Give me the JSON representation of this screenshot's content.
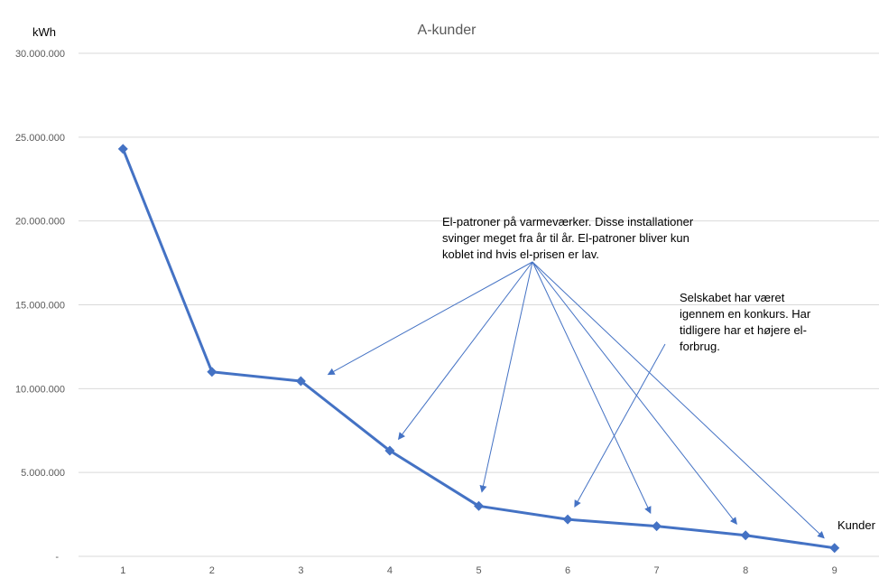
{
  "chart_data": {
    "type": "line",
    "title": "A-kunder",
    "ylabel": "kWh",
    "xlabel": "Kunder",
    "ylim": [
      0,
      30000000
    ],
    "y_ticks": [
      {
        "value": 0,
        "label": "-"
      },
      {
        "value": 5000000,
        "label": "5.000.000"
      },
      {
        "value": 10000000,
        "label": "10.000.000"
      },
      {
        "value": 15000000,
        "label": "15.000.000"
      },
      {
        "value": 20000000,
        "label": "20.000.000"
      },
      {
        "value": 25000000,
        "label": "25.000.000"
      },
      {
        "value": 30000000,
        "label": "30.000.000"
      }
    ],
    "categories": [
      "1",
      "2",
      "3",
      "4",
      "5",
      "6",
      "7",
      "8",
      "9"
    ],
    "series": [
      {
        "values": [
          24300000,
          11000000,
          10450000,
          6300000,
          3000000,
          2200000,
          1800000,
          1250000,
          500000
        ],
        "color": "#4472c4"
      }
    ],
    "grid": true,
    "annotations": [
      {
        "lines": [
          "El-patroner på varmeværker. Disse installationer",
          "svinger meget fra år til år. El-patroner bliver kun",
          "koblet ind hvis el-prisen er lav."
        ],
        "targets": [
          3,
          4,
          5,
          7,
          8,
          9
        ]
      },
      {
        "lines": [
          "Selskabet har været",
          "igennem en konkurs. Har",
          "tidligere har et højere el-",
          "forbrug."
        ],
        "targets": [
          6
        ]
      }
    ]
  }
}
